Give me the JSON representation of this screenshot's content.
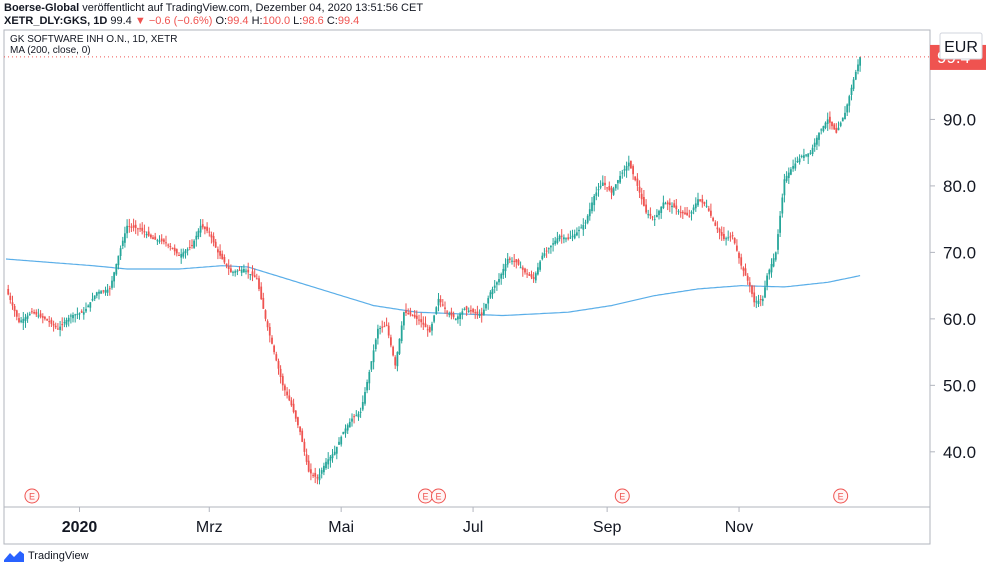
{
  "header": {
    "publisher": "Boerse-Global",
    "published_text": "veröffentlicht auf TradingView.com, Dezember 04, 2020 13:51:56 CET",
    "symbol": "XETR_DLY:GKS, 1D",
    "last": "99.4",
    "change": "−0.6 (−0.6%)",
    "o_label": "O:",
    "o_value": "99.4",
    "h_label": "H:",
    "h_value": "100.0",
    "l_label": "L:",
    "l_value": "98.6",
    "c_label": "C:",
    "c_value": "99.4"
  },
  "legend": {
    "instrument": "GK SOFTWARE INH O.N., 1D, XETR",
    "indicator": "MA (200, close, 0)"
  },
  "footer": {
    "brand": "TradingView"
  },
  "colors": {
    "up": "#26a69a",
    "down": "#ef5350",
    "ma": "#5aaee8",
    "last_price_bg": "#ef5350",
    "axis": "#131722"
  },
  "chart_data": {
    "type": "candlestick",
    "currency": "EUR",
    "last_price_label": "99.4",
    "y_ticks": [
      "40.0",
      "50.0",
      "60.0",
      "70.0",
      "80.0",
      "90.0"
    ],
    "ylim": [
      32,
      103
    ],
    "x_ticks": [
      {
        "label": "2020",
        "day": 34
      },
      {
        "label": "Mrz",
        "day": 94
      },
      {
        "label": "Mai",
        "day": 155
      },
      {
        "label": "Jul",
        "day": 216
      },
      {
        "label": "Sep",
        "day": 278
      },
      {
        "label": "Nov",
        "day": 339
      }
    ],
    "xlim": [
      0,
      425
    ],
    "earnings_markers": {
      "label": "E",
      "days": [
        12,
        194,
        200,
        285,
        386
      ]
    },
    "closes": [
      [
        0,
        64.5
      ],
      [
        6,
        59.5
      ],
      [
        12,
        61.0
      ],
      [
        18,
        60.0
      ],
      [
        24,
        58.5
      ],
      [
        30,
        60.5
      ],
      [
        36,
        61.0
      ],
      [
        42,
        64.0
      ],
      [
        48,
        64.5
      ],
      [
        52,
        69.5
      ],
      [
        56,
        74.0
      ],
      [
        62,
        73.5
      ],
      [
        68,
        72.0
      ],
      [
        74,
        71.5
      ],
      [
        80,
        69.5
      ],
      [
        86,
        71.0
      ],
      [
        90,
        74.0
      ],
      [
        94,
        73.0
      ],
      [
        98,
        70.0
      ],
      [
        104,
        67.0
      ],
      [
        110,
        67.5
      ],
      [
        116,
        66.0
      ],
      [
        120,
        60.0
      ],
      [
        124,
        55.0
      ],
      [
        128,
        50.0
      ],
      [
        132,
        47.0
      ],
      [
        136,
        43.0
      ],
      [
        140,
        37.0
      ],
      [
        144,
        36.0
      ],
      [
        148,
        38.5
      ],
      [
        152,
        40.0
      ],
      [
        156,
        43.0
      ],
      [
        160,
        45.0
      ],
      [
        164,
        46.0
      ],
      [
        168,
        52.0
      ],
      [
        172,
        58.5
      ],
      [
        176,
        59.0
      ],
      [
        180,
        53.0
      ],
      [
        184,
        61.0
      ],
      [
        188,
        60.5
      ],
      [
        192,
        59.5
      ],
      [
        196,
        58.0
      ],
      [
        200,
        63.0
      ],
      [
        204,
        61.0
      ],
      [
        208,
        60.0
      ],
      [
        212,
        61.5
      ],
      [
        216,
        61.0
      ],
      [
        220,
        60.5
      ],
      [
        224,
        64.0
      ],
      [
        228,
        66.0
      ],
      [
        232,
        69.0
      ],
      [
        236,
        68.5
      ],
      [
        240,
        67.0
      ],
      [
        244,
        66.0
      ],
      [
        248,
        69.5
      ],
      [
        252,
        71.0
      ],
      [
        256,
        72.5
      ],
      [
        260,
        72.0
      ],
      [
        264,
        73.0
      ],
      [
        268,
        74.5
      ],
      [
        272,
        78.5
      ],
      [
        276,
        80.5
      ],
      [
        280,
        79.0
      ],
      [
        284,
        81.5
      ],
      [
        288,
        83.5
      ],
      [
        292,
        80.0
      ],
      [
        296,
        76.0
      ],
      [
        300,
        75.0
      ],
      [
        304,
        77.5
      ],
      [
        308,
        77.0
      ],
      [
        312,
        76.0
      ],
      [
        316,
        75.5
      ],
      [
        320,
        78.0
      ],
      [
        324,
        77.0
      ],
      [
        328,
        74.0
      ],
      [
        332,
        72.0
      ],
      [
        336,
        72.5
      ],
      [
        340,
        68.0
      ],
      [
        344,
        65.0
      ],
      [
        346,
        62.5
      ],
      [
        350,
        63.0
      ],
      [
        352,
        66.5
      ],
      [
        356,
        70.0
      ],
      [
        360,
        81.0
      ],
      [
        364,
        83.0
      ],
      [
        368,
        84.5
      ],
      [
        372,
        85.0
      ],
      [
        376,
        88.0
      ],
      [
        380,
        90.0
      ],
      [
        384,
        88.0
      ],
      [
        388,
        91.0
      ],
      [
        392,
        96.0
      ],
      [
        395,
        99.4
      ]
    ],
    "ma200": [
      [
        0,
        69.0
      ],
      [
        20,
        68.5
      ],
      [
        40,
        68.0
      ],
      [
        56,
        67.5
      ],
      [
        80,
        67.5
      ],
      [
        100,
        68.0
      ],
      [
        112,
        67.8
      ],
      [
        130,
        66.0
      ],
      [
        150,
        64.0
      ],
      [
        170,
        62.0
      ],
      [
        190,
        61.0
      ],
      [
        206,
        60.8
      ],
      [
        230,
        60.5
      ],
      [
        260,
        61.0
      ],
      [
        280,
        62.0
      ],
      [
        300,
        63.5
      ],
      [
        320,
        64.5
      ],
      [
        340,
        65.0
      ],
      [
        360,
        64.8
      ],
      [
        380,
        65.5
      ],
      [
        395,
        66.5
      ]
    ]
  }
}
